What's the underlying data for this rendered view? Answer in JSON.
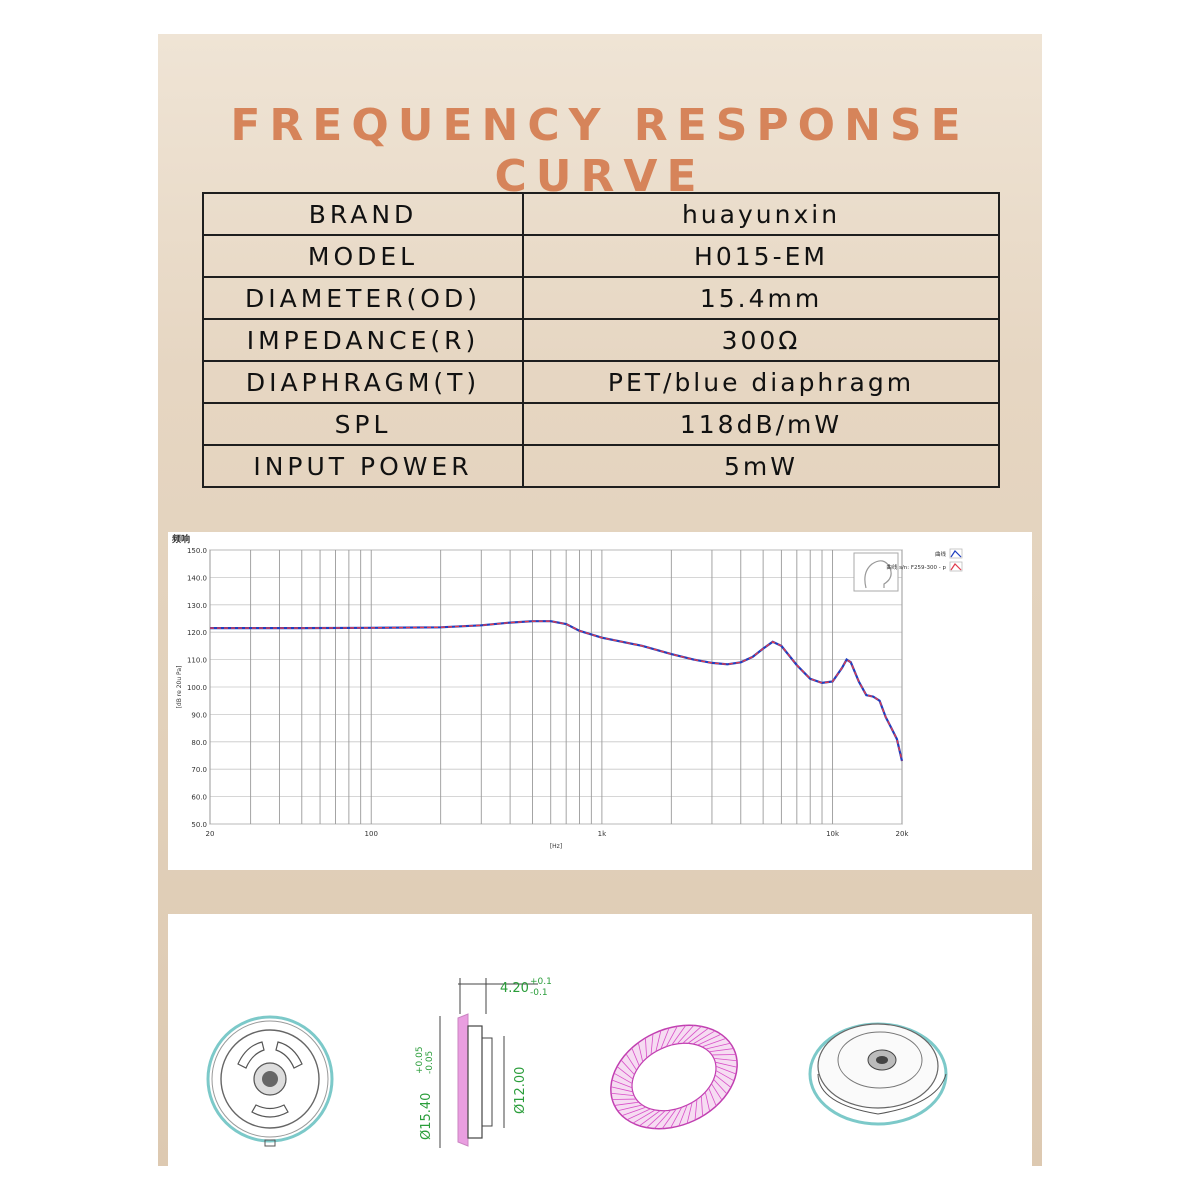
{
  "header": {
    "title": "FREQUENCY RESPONSE CURVE"
  },
  "specs": [
    {
      "key": "BRAND",
      "value": "huayunxin"
    },
    {
      "key": "MODEL",
      "value": "H015-EM"
    },
    {
      "key": "DIAMETER(OD)",
      "value": "15.4mm"
    },
    {
      "key": "IMPEDANCE(R)",
      "value": "300Ω"
    },
    {
      "key": "DIAPHRAGM(T)",
      "value": "PET/blue diaphragm"
    },
    {
      "key": "SPL",
      "value": "118dB/mW"
    },
    {
      "key": "INPUT POWER",
      "value": "5mW"
    }
  ],
  "chart_data": {
    "type": "line",
    "title": "频响",
    "xlabel": "[Hz]",
    "ylabel": "[dB re 20u Pa]",
    "x_scale": "log",
    "xlim": [
      20,
      20000
    ],
    "ylim": [
      50,
      150
    ],
    "x_ticks": [
      {
        "v": 20,
        "label": "20"
      },
      {
        "v": 100,
        "label": "100"
      },
      {
        "v": 1000,
        "label": "1k"
      },
      {
        "v": 10000,
        "label": "10k"
      },
      {
        "v": 20000,
        "label": "20k"
      }
    ],
    "y_ticks": [
      "50.0",
      "60.0",
      "70.0",
      "80.0",
      "90.0",
      "100.0",
      "110.0",
      "120.0",
      "130.0",
      "140.0",
      "150.0"
    ],
    "grid": true,
    "legend_position": "top-right",
    "series": [
      {
        "name": "曲线",
        "color": "#1f3fbf",
        "x": [
          20,
          50,
          100,
          200,
          300,
          400,
          500,
          600,
          700,
          800,
          1000,
          1500,
          2000,
          2500,
          3000,
          3500,
          4000,
          4500,
          5000,
          5500,
          6000,
          7000,
          8000,
          9000,
          10000,
          11000,
          11500,
          12000,
          13000,
          14000,
          15000,
          16000,
          17000,
          18000,
          19000,
          20000
        ],
        "y": [
          121.5,
          121.5,
          121.6,
          121.8,
          122.5,
          123.5,
          124,
          124,
          123,
          120.5,
          118,
          115,
          112,
          110,
          108.8,
          108.3,
          109,
          111,
          114,
          116.5,
          115,
          108,
          103,
          101.5,
          102,
          107,
          110,
          109,
          102,
          97,
          96.5,
          95,
          89,
          85,
          81,
          73
        ]
      },
      {
        "name": "曲线 s/n: F259-300 - p",
        "color": "#e03b4e",
        "x": [
          20,
          50,
          100,
          200,
          300,
          400,
          500,
          600,
          700,
          800,
          1000,
          1500,
          2000,
          2500,
          3000,
          3500,
          4000,
          4500,
          5000,
          5500,
          6000,
          7000,
          8000,
          9000,
          10000,
          11000,
          11500,
          12000,
          13000,
          14000,
          15000,
          16000,
          17000,
          18000,
          19000,
          20000
        ],
        "y": [
          121.5,
          121.5,
          121.6,
          121.8,
          122.5,
          123.5,
          124,
          124,
          123,
          120.5,
          118,
          115,
          112,
          110,
          108.8,
          108.3,
          109,
          111,
          114,
          116.5,
          115,
          108,
          103,
          101.5,
          102,
          107,
          110,
          109,
          102,
          97,
          96.5,
          95,
          89,
          85,
          81,
          73
        ]
      }
    ]
  },
  "drawing": {
    "dim_thickness": "4.20",
    "dim_thickness_tol_upper": "+0.1",
    "dim_thickness_tol_lower": "-0.1",
    "dim_outer_diameter": "Ø15.40",
    "dim_outer_tol_upper": "+0.05",
    "dim_outer_tol_lower": "-0.05",
    "dim_inner_diameter": "Ø12.00"
  },
  "colors": {
    "title": "#d6845a",
    "curve_blue": "#1f3fbf",
    "curve_red": "#e03b4e",
    "dimension_green": "#2a9d3a",
    "diaphragm_pink": "#d84fc8"
  }
}
